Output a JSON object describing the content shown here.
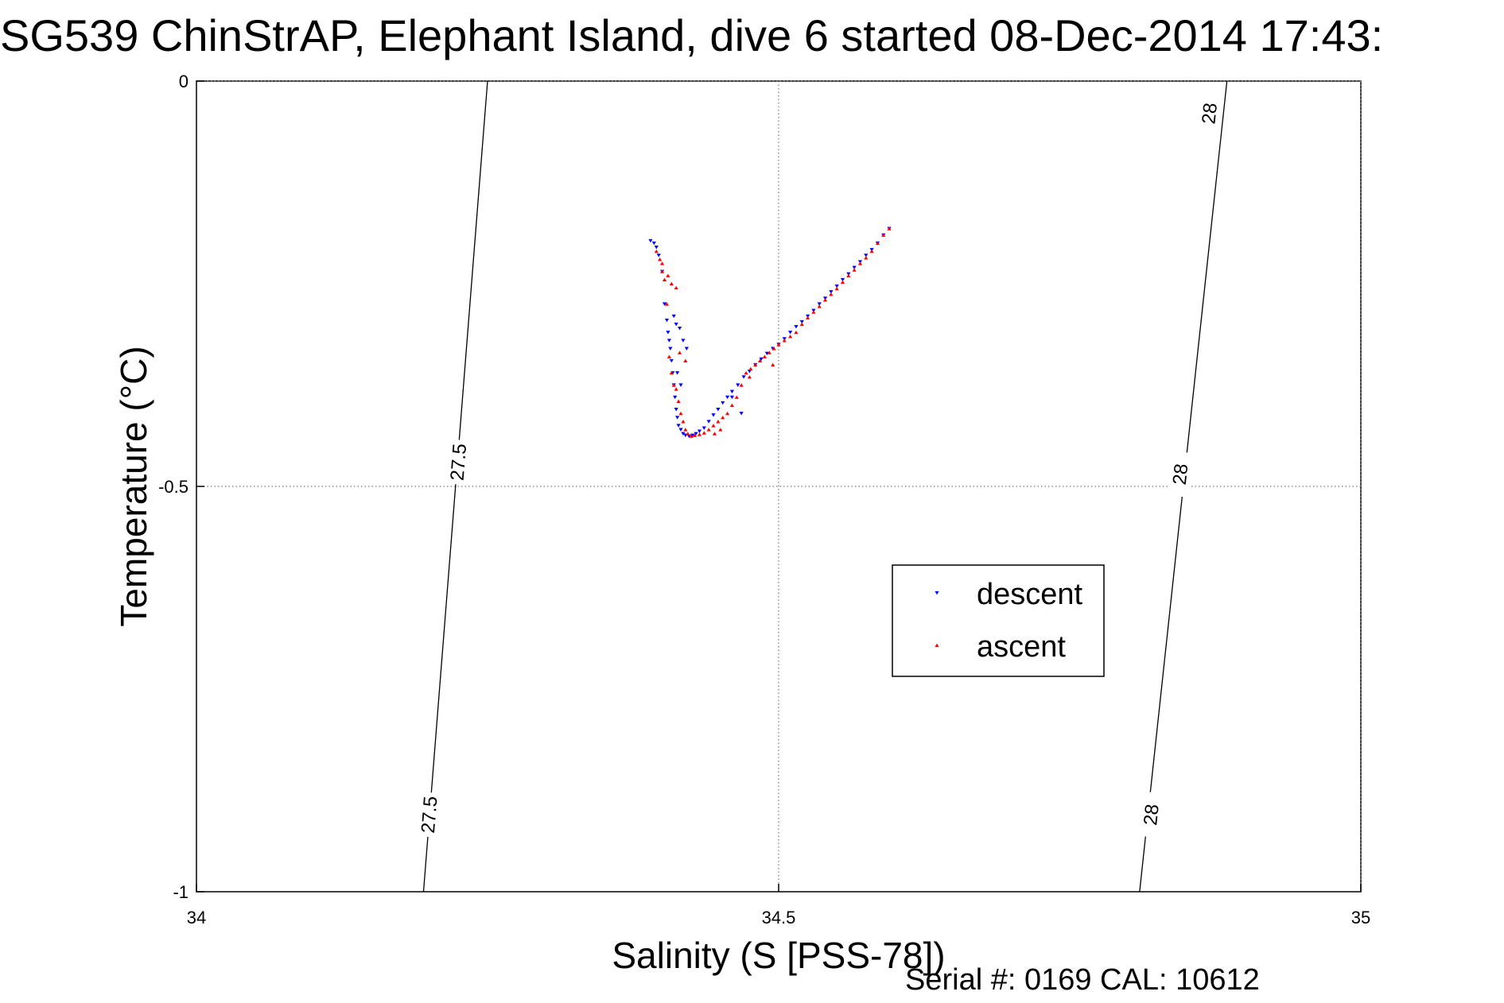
{
  "chart_data": {
    "type": "scatter",
    "title": "SG539 ChinStrAP, Elephant Island, dive 6 started 08-Dec-2014 17:43:",
    "xlabel": "Salinity (S [PSS-78])",
    "ylabel": "Temperature (°C)",
    "xlim": [
      34,
      35
    ],
    "ylim": [
      -1,
      0
    ],
    "x_ticks": [
      34,
      34.5,
      35
    ],
    "y_ticks": [
      0,
      -0.5,
      -1
    ],
    "x_tick_labels": [
      "34",
      "34.5",
      "35"
    ],
    "y_tick_labels": [
      "0",
      "-0.5",
      "-1"
    ],
    "grid": true,
    "legend_position": "inside-right",
    "density_contours": [
      {
        "value": "27.5",
        "points": [
          [
            34.25,
            0
          ],
          [
            34.195,
            -1
          ]
        ],
        "labels_at": [
          [
            34.225,
            -0.47
          ],
          [
            34.2,
            -0.905
          ]
        ]
      },
      {
        "value": "28",
        "points": [
          [
            34.885,
            0
          ],
          [
            34.81,
            -1
          ]
        ],
        "labels_at": [
          [
            34.87,
            -0.04
          ],
          [
            34.845,
            -0.485
          ],
          [
            34.82,
            -0.905
          ]
        ]
      }
    ],
    "series": [
      {
        "name": "descent",
        "color": "#0000ff",
        "marker": "triangle-down",
        "x": [
          34.39,
          34.393,
          34.395,
          34.397,
          34.4,
          34.402,
          34.404,
          34.405,
          34.406,
          34.407,
          34.408,
          34.409,
          34.41,
          34.411,
          34.412,
          34.413,
          34.414,
          34.416,
          34.418,
          34.42,
          34.423,
          34.426,
          34.429,
          34.432,
          34.436,
          34.44,
          34.444,
          34.448,
          34.452,
          34.456,
          34.46,
          34.465,
          34.47,
          34.475,
          34.48,
          34.485,
          34.49,
          34.495,
          34.5,
          34.505,
          34.51,
          34.515,
          34.52,
          34.525,
          34.53,
          34.535,
          34.54,
          34.545,
          34.55,
          34.555,
          34.56,
          34.565,
          34.57,
          34.575,
          34.58,
          34.585,
          34.59,
          34.595,
          34.41,
          34.412,
          34.415,
          34.418,
          34.421,
          34.413,
          34.416,
          34.46,
          34.468
        ],
        "y": [
          -0.197,
          -0.2,
          -0.205,
          -0.215,
          -0.235,
          -0.275,
          -0.295,
          -0.31,
          -0.32,
          -0.33,
          -0.345,
          -0.36,
          -0.375,
          -0.39,
          -0.405,
          -0.415,
          -0.425,
          -0.43,
          -0.435,
          -0.437,
          -0.438,
          -0.437,
          -0.435,
          -0.432,
          -0.428,
          -0.42,
          -0.412,
          -0.405,
          -0.397,
          -0.39,
          -0.383,
          -0.375,
          -0.365,
          -0.358,
          -0.35,
          -0.343,
          -0.336,
          -0.33,
          -0.325,
          -0.318,
          -0.31,
          -0.303,
          -0.297,
          -0.29,
          -0.283,
          -0.275,
          -0.268,
          -0.26,
          -0.253,
          -0.245,
          -0.238,
          -0.23,
          -0.223,
          -0.215,
          -0.208,
          -0.2,
          -0.19,
          -0.182,
          -0.29,
          -0.3,
          -0.305,
          -0.32,
          -0.33,
          -0.36,
          -0.375,
          -0.39,
          -0.41
        ]
      },
      {
        "name": "ascent",
        "color": "#ff0000",
        "marker": "triangle-up",
        "x": [
          34.395,
          34.398,
          34.4,
          34.402,
          34.404,
          34.406,
          34.408,
          34.41,
          34.412,
          34.414,
          34.416,
          34.418,
          34.42,
          34.422,
          34.425,
          34.428,
          34.432,
          34.436,
          34.44,
          34.444,
          34.448,
          34.452,
          34.456,
          34.46,
          34.464,
          34.468,
          34.472,
          34.476,
          34.48,
          34.484,
          34.488,
          34.492,
          34.496,
          34.5,
          34.505,
          34.51,
          34.515,
          34.52,
          34.525,
          34.53,
          34.535,
          34.54,
          34.545,
          34.55,
          34.555,
          34.56,
          34.565,
          34.57,
          34.575,
          34.58,
          34.585,
          34.59,
          34.595,
          34.4,
          34.405,
          34.408,
          34.412,
          34.415,
          34.42,
          34.445,
          34.45,
          34.475,
          34.495
        ],
        "y": [
          -0.21,
          -0.22,
          -0.235,
          -0.245,
          -0.275,
          -0.34,
          -0.36,
          -0.375,
          -0.38,
          -0.395,
          -0.41,
          -0.42,
          -0.43,
          -0.435,
          -0.438,
          -0.437,
          -0.436,
          -0.434,
          -0.43,
          -0.425,
          -0.42,
          -0.415,
          -0.41,
          -0.4,
          -0.39,
          -0.375,
          -0.36,
          -0.355,
          -0.35,
          -0.345,
          -0.34,
          -0.335,
          -0.33,
          -0.325,
          -0.32,
          -0.315,
          -0.31,
          -0.3,
          -0.292,
          -0.285,
          -0.278,
          -0.27,
          -0.263,
          -0.256,
          -0.248,
          -0.24,
          -0.233,
          -0.225,
          -0.218,
          -0.21,
          -0.2,
          -0.19,
          -0.182,
          -0.225,
          -0.24,
          -0.25,
          -0.255,
          -0.335,
          -0.345,
          -0.435,
          -0.43,
          -0.365,
          -0.35
        ]
      }
    ],
    "footer": "Serial #: 0169 CAL: 10612"
  }
}
